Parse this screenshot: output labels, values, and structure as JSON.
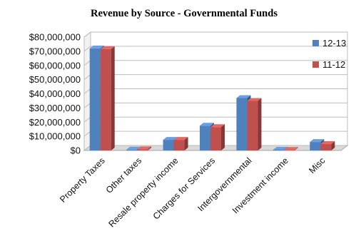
{
  "chart_data": {
    "type": "bar",
    "title": "Revenue by Source - Governmental Funds",
    "xlabel": "",
    "ylabel": "",
    "ylim": [
      0,
      80000000
    ],
    "yticks": [
      0,
      10000000,
      20000000,
      30000000,
      40000000,
      50000000,
      60000000,
      70000000,
      80000000
    ],
    "ytick_labels": [
      "$0",
      "$10,000,000",
      "$20,000,000",
      "$30,000,000",
      "$40,000,000",
      "$50,000,000",
      "$60,000,000",
      "$70,000,000",
      "$80,000,000"
    ],
    "grid": true,
    "legend_position": "top-right",
    "categories": [
      "Property Taxes",
      "Other taxes",
      "Resale property income",
      "Charges for Services",
      "Intergovernmental",
      "Investment income",
      "Misc"
    ],
    "series": [
      {
        "name": "12-13",
        "color": "#4f81bd",
        "values": [
          72000000,
          600000,
          7500000,
          17500000,
          37000000,
          500000,
          6000000
        ]
      },
      {
        "name": "11-12",
        "color": "#c0504d",
        "values": [
          71500000,
          800000,
          7500000,
          16500000,
          35000000,
          400000,
          4500000
        ]
      }
    ]
  }
}
